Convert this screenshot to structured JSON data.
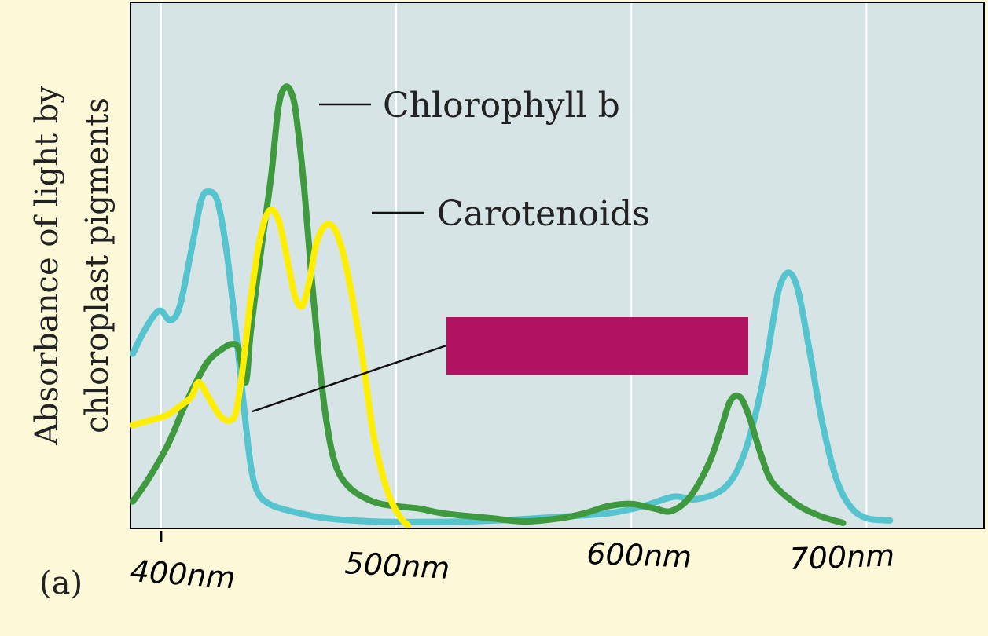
{
  "chart_data": {
    "type": "line",
    "ylabel_lines": [
      "Absorbance of light by",
      "chloroplast pigments"
    ],
    "panel_label": "(a)",
    "x_tick_labels": [
      {
        "value": 400,
        "label": "400nm"
      },
      {
        "value": 500,
        "label": "500nm"
      },
      {
        "value": 600,
        "label": "600nm"
      },
      {
        "value": 700,
        "label": "700nm"
      }
    ],
    "xlim": [
      387,
      750
    ],
    "ylim": [
      0,
      1
    ],
    "grid": "vertical",
    "series": [
      {
        "key": "chlorophyll_a",
        "color": "#55c4cf",
        "points": [
          [
            388,
            0.36
          ],
          [
            392,
            0.4
          ],
          [
            397,
            0.44
          ],
          [
            400,
            0.45
          ],
          [
            404,
            0.43
          ],
          [
            408,
            0.46
          ],
          [
            413,
            0.58
          ],
          [
            417,
            0.68
          ],
          [
            420,
            0.7
          ],
          [
            424,
            0.68
          ],
          [
            428,
            0.57
          ],
          [
            432,
            0.4
          ],
          [
            435,
            0.26
          ],
          [
            438,
            0.13
          ],
          [
            441,
            0.07
          ],
          [
            446,
            0.045
          ],
          [
            455,
            0.03
          ],
          [
            470,
            0.015
          ],
          [
            490,
            0.008
          ],
          [
            510,
            0.007
          ],
          [
            530,
            0.008
          ],
          [
            550,
            0.012
          ],
          [
            570,
            0.018
          ],
          [
            590,
            0.025
          ],
          [
            605,
            0.04
          ],
          [
            618,
            0.06
          ],
          [
            628,
            0.055
          ],
          [
            640,
            0.08
          ],
          [
            648,
            0.15
          ],
          [
            655,
            0.28
          ],
          [
            660,
            0.42
          ],
          [
            663,
            0.5
          ],
          [
            667,
            0.53
          ],
          [
            671,
            0.49
          ],
          [
            676,
            0.36
          ],
          [
            681,
            0.22
          ],
          [
            687,
            0.1
          ],
          [
            693,
            0.04
          ],
          [
            700,
            0.015
          ],
          [
            710,
            0.01
          ]
        ]
      },
      {
        "name": "Chlorophyll b",
        "key": "chlorophyll_b",
        "color": "#3f9a3f",
        "points": [
          [
            388,
            0.05
          ],
          [
            395,
            0.1
          ],
          [
            403,
            0.17
          ],
          [
            410,
            0.25
          ],
          [
            417,
            0.32
          ],
          [
            421,
            0.35
          ],
          [
            426,
            0.37
          ],
          [
            430,
            0.38
          ],
          [
            433,
            0.37
          ],
          [
            436,
            0.3
          ],
          [
            438,
            0.4
          ],
          [
            441,
            0.52
          ],
          [
            444,
            0.63
          ],
          [
            447,
            0.74
          ],
          [
            450,
            0.88
          ],
          [
            453,
            0.92
          ],
          [
            456,
            0.9
          ],
          [
            458,
            0.84
          ],
          [
            461,
            0.7
          ],
          [
            464,
            0.52
          ],
          [
            467,
            0.36
          ],
          [
            470,
            0.23
          ],
          [
            474,
            0.13
          ],
          [
            480,
            0.08
          ],
          [
            490,
            0.05
          ],
          [
            500,
            0.04
          ],
          [
            510,
            0.035
          ],
          [
            520,
            0.025
          ],
          [
            540,
            0.015
          ],
          [
            555,
            0.008
          ],
          [
            570,
            0.015
          ],
          [
            580,
            0.025
          ],
          [
            590,
            0.04
          ],
          [
            600,
            0.045
          ],
          [
            610,
            0.035
          ],
          [
            617,
            0.03
          ],
          [
            625,
            0.06
          ],
          [
            633,
            0.13
          ],
          [
            638,
            0.2
          ],
          [
            642,
            0.26
          ],
          [
            646,
            0.27
          ],
          [
            650,
            0.23
          ],
          [
            655,
            0.15
          ],
          [
            660,
            0.09
          ],
          [
            670,
            0.045
          ],
          [
            680,
            0.02
          ],
          [
            690,
            0.005
          ]
        ]
      },
      {
        "name": "Carotenoids",
        "key": "carotenoids",
        "color": "#ffee00",
        "points": [
          [
            388,
            0.21
          ],
          [
            395,
            0.22
          ],
          [
            402,
            0.23
          ],
          [
            408,
            0.25
          ],
          [
            413,
            0.27
          ],
          [
            416,
            0.3
          ],
          [
            420,
            0.27
          ],
          [
            425,
            0.23
          ],
          [
            429,
            0.22
          ],
          [
            432,
            0.24
          ],
          [
            435,
            0.34
          ],
          [
            438,
            0.47
          ],
          [
            442,
            0.6
          ],
          [
            446,
            0.66
          ],
          [
            450,
            0.64
          ],
          [
            454,
            0.55
          ],
          [
            457,
            0.48
          ],
          [
            460,
            0.46
          ],
          [
            463,
            0.51
          ],
          [
            466,
            0.59
          ],
          [
            470,
            0.63
          ],
          [
            474,
            0.62
          ],
          [
            478,
            0.56
          ],
          [
            482,
            0.46
          ],
          [
            486,
            0.34
          ],
          [
            490,
            0.2
          ],
          [
            494,
            0.11
          ],
          [
            498,
            0.05
          ],
          [
            502,
            0.015
          ],
          [
            505,
            0.0
          ]
        ]
      }
    ],
    "annotations": [
      {
        "text": "Chlorophyll b",
        "series": "chlorophyll_b"
      },
      {
        "text": "Carotenoids",
        "series": "carotenoids"
      }
    ],
    "redacted_label_color": "#b0135f"
  }
}
